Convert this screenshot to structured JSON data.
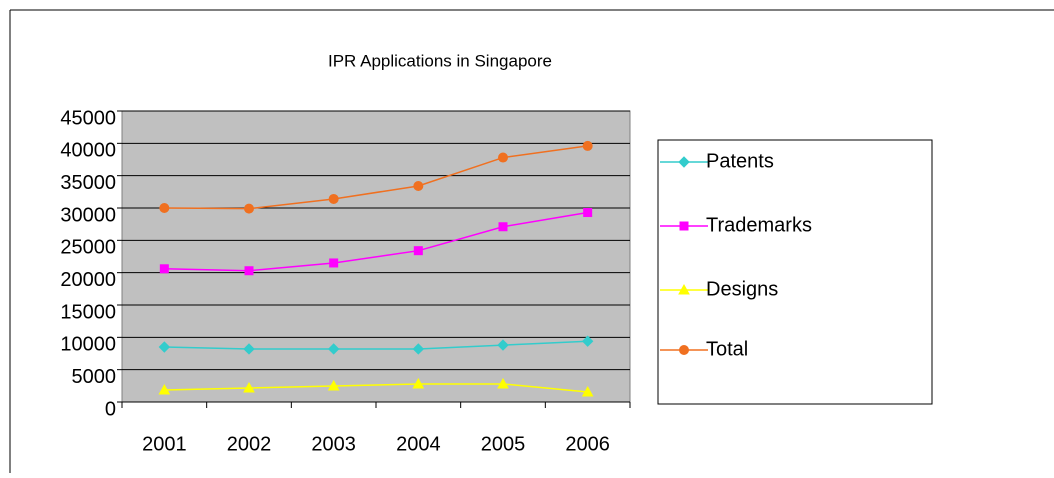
{
  "chart_data": {
    "type": "line",
    "title": "IPR Applications in Singapore",
    "categories": [
      "2001",
      "2002",
      "2003",
      "2004",
      "2005",
      "2006"
    ],
    "series": [
      {
        "name": "Patents",
        "color": "#33cccc",
        "marker": "diamond",
        "values": [
          8500,
          8200,
          8200,
          8200,
          8800,
          9400
        ]
      },
      {
        "name": "Trademarks",
        "color": "#ff00ff",
        "marker": "square",
        "values": [
          20600,
          20300,
          21500,
          23400,
          27100,
          29300
        ]
      },
      {
        "name": "Designs",
        "color": "#ffff00",
        "marker": "triangle",
        "values": [
          1860,
          2170,
          2480,
          2790,
          2790,
          1550
        ]
      },
      {
        "name": "Total",
        "color": "#f07020",
        "marker": "circle",
        "values": [
          30000,
          29900,
          31400,
          33400,
          37800,
          39600
        ]
      }
    ],
    "ylim": [
      0,
      45000
    ],
    "yticks": [
      0,
      5000,
      10000,
      15000,
      20000,
      25000,
      30000,
      35000,
      40000,
      45000
    ],
    "grid": true,
    "legend": "right"
  }
}
